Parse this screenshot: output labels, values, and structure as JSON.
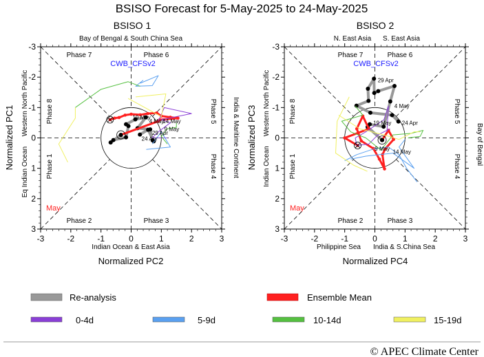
{
  "title": "BSISO Forecast for 5-May-2025 to 24-May-2025",
  "model": "CWB_CFSv2",
  "month_label": "May",
  "copyright": "© APEC Climate Center",
  "colors": {
    "reanalysis": "#999999",
    "ensemble": "#ff2020",
    "d0_4": "#8a3fd6",
    "d5_9": "#5aa0f0",
    "d10_14": "#55c040",
    "d15_19": "#f0f060",
    "model": "#1a1aff"
  },
  "legend": {
    "reanalysis": "Re-analysis",
    "ensemble": "Ensemble Mean",
    "d0_4": "0-4d",
    "d5_9": "5-9d",
    "d10_14": "10-14d",
    "d15_19": "15-19d"
  },
  "chart_data": [
    {
      "type": "line",
      "title": "BSISO 1",
      "xlabel": "Normalized PC2",
      "ylabel": "Normalized PC1",
      "xlim": [
        -3,
        3
      ],
      "ylim": [
        3,
        -3
      ],
      "ticks": [
        "-3",
        "-2",
        "-1",
        "0",
        "1",
        "2",
        "3"
      ],
      "regions": {
        "top": "Bay of Bengal & South China Sea",
        "bottom": "Indian Ocean & East Asia",
        "left_upper": "Western North Pacific",
        "left_lower": "Eq Indian Ocean",
        "right": "India & Maritime Continent"
      },
      "phases": {
        "p1": "Phase 1",
        "p2": "Phase 2",
        "p3": "Phase 3",
        "p4": "Phase 4",
        "p5": "Phase 5",
        "p6": "Phase 6",
        "p7": "Phase 7",
        "p8": "Phase 8"
      },
      "series": [
        {
          "name": "Re-analysis",
          "key": "reanalysis",
          "points": [
            [
              0.29,
              -0.11
            ],
            [
              0.56,
              -0.27
            ],
            [
              0.75,
              0.11
            ],
            [
              0.71,
              0.08
            ],
            [
              0.63,
              -0.28
            ],
            [
              0.21,
              -0.32
            ],
            [
              0.49,
              -0.68
            ],
            [
              0.14,
              -0.61
            ],
            [
              -0.17,
              -0.45
            ],
            [
              -0.09,
              -0.39
            ],
            [
              -0.17,
              -0.02
            ],
            [
              -0.59,
              0.07
            ],
            [
              -0.68,
              0.15
            ],
            [
              -0.34,
              -0.1
            ]
          ]
        },
        {
          "name": "Ensemble Mean",
          "key": "ensemble",
          "points": [
            [
              -0.34,
              -0.1
            ],
            [
              0.9,
              -0.55
            ],
            [
              0.95,
              -0.6
            ],
            [
              1.55,
              -0.65
            ],
            [
              1.3,
              -0.68
            ],
            [
              1.0,
              -0.72
            ],
            [
              0.85,
              -0.82
            ],
            [
              0.55,
              -0.8
            ],
            [
              0.3,
              -0.76
            ],
            [
              0.0,
              -0.78
            ],
            [
              -0.2,
              -0.75
            ],
            [
              -0.4,
              -0.67
            ],
            [
              -0.55,
              -0.65
            ],
            [
              -0.7,
              -0.6
            ]
          ]
        },
        {
          "name": "0-4d",
          "key": "d0_4",
          "points": [
            [
              0.9,
              -0.55
            ],
            [
              1.1,
              -1.0
            ],
            [
              2.0,
              -0.8
            ],
            [
              1.0,
              -0.6
            ],
            [
              1.3,
              -0.5
            ],
            [
              0.9,
              -0.2
            ],
            [
              0.7,
              0.0
            ],
            [
              1.2,
              0.0
            ]
          ]
        },
        {
          "name": "5-9d",
          "key": "d5_9",
          "points": [
            [
              0.3,
              -1.8
            ],
            [
              0.9,
              -2.05
            ],
            [
              0.7,
              -1.72
            ],
            [
              0.15,
              -1.7
            ],
            [
              0.4,
              -1.9
            ]
          ]
        },
        {
          "name": "5-9d",
          "key": "d5_9",
          "points": [
            [
              0.5,
              0.38
            ],
            [
              1.3,
              0.3
            ],
            [
              1.0,
              -0.2
            ],
            [
              0.7,
              0.2
            ]
          ]
        },
        {
          "name": "10-14d",
          "key": "d10_14",
          "points": [
            [
              -1.85,
              -1.0
            ],
            [
              -1.0,
              -1.6
            ],
            [
              -0.1,
              -1.85
            ],
            [
              0.3,
              -1.7
            ]
          ]
        },
        {
          "name": "10-14d",
          "key": "d10_14",
          "points": [
            [
              1.5,
              -0.5
            ],
            [
              1.5,
              -0.35
            ],
            [
              1.2,
              -0.3
            ],
            [
              1.0,
              -0.05
            ],
            [
              1.2,
              0.2
            ]
          ]
        },
        {
          "name": "15-19d",
          "key": "d15_19",
          "points": [
            [
              -2.1,
              0.8
            ],
            [
              -2.4,
              0.2
            ],
            [
              -1.85,
              -0.65
            ],
            [
              -1.85,
              -1.0
            ]
          ]
        },
        {
          "name": "15-19d",
          "key": "d15_19",
          "points": [
            [
              0.15,
              -1.35
            ],
            [
              1.15,
              -1.45
            ],
            [
              1.0,
              -0.7
            ],
            [
              -0.1,
              -1.3
            ]
          ]
        }
      ],
      "start_marker": [
        -0.34,
        -0.1
      ],
      "end_marker": [
        -0.7,
        -0.6
      ],
      "date_labels": [
        {
          "text": "19 May",
          "x": 0.0,
          "y": -0.68
        },
        {
          "text": "4 May",
          "x": 0.55,
          "y": -0.55
        },
        {
          "text": "14 May",
          "x": 1.0,
          "y": -0.55
        },
        {
          "text": "9 May",
          "x": 1.05,
          "y": -0.3
        },
        {
          "text": "29 Apr",
          "x": 0.65,
          "y": -0.17
        },
        {
          "text": "24 Apr",
          "x": 0.3,
          "y": 0.02
        }
      ]
    },
    {
      "type": "line",
      "title": "BSISO 2",
      "xlabel": "Normalized PC4",
      "ylabel": "Normalized PC3",
      "xlim": [
        -3,
        3
      ],
      "ylim": [
        3,
        -3
      ],
      "ticks": [
        "-3",
        "-2",
        "-1",
        "0",
        "1",
        "2",
        "3"
      ],
      "regions": {
        "top_left": "N. East Asia",
        "top_right": "S. East Asia",
        "bottom_left": "Philippine Sea",
        "bottom_right": "India & S.China Sea",
        "left_upper": "Western North Pacific",
        "left_lower": "Indian Ocean",
        "right": "Bay of Bengal"
      },
      "phases": {
        "p1": "Phase 1",
        "p2": "Phase 2",
        "p3": "Phase 3",
        "p4": "Phase 4",
        "p5": "Phase 5",
        "p6": "Phase 6",
        "p7": "Phase 7",
        "p8": "Phase 8"
      },
      "series": [
        {
          "name": "Re-analysis",
          "key": "reanalysis",
          "points": [
            [
              0.78,
              -0.54
            ],
            [
              0.57,
              -0.75
            ],
            [
              -0.15,
              -0.83
            ],
            [
              -0.61,
              -1.06
            ],
            [
              -0.21,
              -1.22
            ],
            [
              -0.23,
              -1.62
            ],
            [
              -0.03,
              -1.95
            ],
            [
              -0.02,
              -1.48
            ],
            [
              0.11,
              -1.54
            ],
            [
              0.65,
              -1.71
            ],
            [
              0.51,
              -1.2
            ],
            [
              0.29,
              -0.37
            ],
            [
              -0.17,
              -0.45
            ],
            [
              -0.24,
              -0.36
            ],
            [
              0.24,
              0.07
            ]
          ]
        },
        {
          "name": "Ensemble Mean",
          "key": "ensemble",
          "points": [
            [
              0.24,
              0.07
            ],
            [
              0.45,
              -0.25
            ],
            [
              0.62,
              0.05
            ],
            [
              0.35,
              0.35
            ],
            [
              0.25,
              0.55
            ],
            [
              0.32,
              1.02
            ],
            [
              0.15,
              0.7
            ],
            [
              -0.05,
              0.35
            ],
            [
              -0.45,
              0.1
            ],
            [
              -0.6,
              -0.3
            ],
            [
              -0.4,
              -0.72
            ],
            [
              -0.2,
              -0.3
            ],
            [
              -1.0,
              0.0
            ],
            [
              -0.57,
              0.25
            ]
          ]
        },
        {
          "name": "0-4d",
          "key": "d0_4",
          "points": [
            [
              0.4,
              -0.2
            ],
            [
              0.45,
              -1.05
            ],
            [
              0.3,
              -0.6
            ],
            [
              -0.3,
              -0.2
            ],
            [
              -0.65,
              0.0
            ],
            [
              -0.6,
              0.25
            ],
            [
              -0.2,
              0.2
            ],
            [
              0.1,
              -0.1
            ],
            [
              0.5,
              -0.3
            ]
          ]
        },
        {
          "name": "5-9d",
          "key": "d5_9",
          "points": [
            [
              -1.0,
              0.75
            ],
            [
              -0.6,
              0.55
            ],
            [
              0.0,
              0.35
            ],
            [
              0.45,
              0.3
            ],
            [
              0.8,
              0.55
            ],
            [
              1.05,
              1.0
            ],
            [
              1.4,
              1.45
            ]
          ]
        },
        {
          "name": "5-9d",
          "key": "d5_9",
          "points": [
            [
              -0.8,
              0.7
            ],
            [
              -0.3,
              0.6
            ],
            [
              0.6,
              0.5
            ],
            [
              1.3,
              1.0
            ],
            [
              0.8,
              0.3
            ],
            [
              1.0,
              0.05
            ]
          ]
        },
        {
          "name": "10-14d",
          "key": "d10_14",
          "points": [
            [
              -0.65,
              -1.05
            ],
            [
              -0.4,
              -0.75
            ],
            [
              -1.1,
              -0.55
            ],
            [
              -0.8,
              -0.2
            ],
            [
              -0.3,
              0.0
            ],
            [
              0.2,
              0.4
            ],
            [
              0.6,
              -0.1
            ],
            [
              1.2,
              -0.15
            ],
            [
              1.6,
              -0.25
            ],
            [
              1.5,
              -0.05
            ],
            [
              1.1,
              0.0
            ]
          ]
        },
        {
          "name": "15-19d",
          "key": "d15_19",
          "points": [
            [
              -0.85,
              -1.35
            ],
            [
              -1.1,
              -0.85
            ],
            [
              -1.25,
              -0.55
            ],
            [
              -1.3,
              0.5
            ],
            [
              -0.7,
              0.9
            ],
            [
              -0.25,
              1.1
            ]
          ]
        },
        {
          "name": "15-19d",
          "key": "d15_19",
          "points": [
            [
              -1.2,
              -0.75
            ],
            [
              -0.5,
              -0.3
            ],
            [
              0.3,
              -0.1
            ],
            [
              0.8,
              0.05
            ],
            [
              1.3,
              -0.2
            ],
            [
              1.5,
              -0.2
            ]
          ]
        }
      ],
      "start_marker": [
        0.24,
        0.07
      ],
      "end_marker": [
        -0.57,
        0.25
      ],
      "date_labels": [
        {
          "text": "29 Apr",
          "x": 0.05,
          "y": -1.9
        },
        {
          "text": "4 May",
          "x": 0.6,
          "y": -1.05
        },
        {
          "text": "19 May",
          "x": -0.1,
          "y": -0.5
        },
        {
          "text": "24 Apr",
          "x": 0.85,
          "y": -0.5
        },
        {
          "text": "9 May",
          "x": -0.05,
          "y": 0.35
        },
        {
          "text": "14 May",
          "x": 0.55,
          "y": 0.45
        }
      ]
    }
  ]
}
